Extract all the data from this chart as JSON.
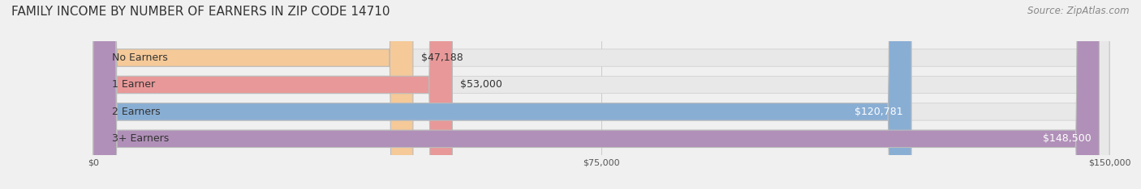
{
  "title": "FAMILY INCOME BY NUMBER OF EARNERS IN ZIP CODE 14710",
  "source": "Source: ZipAtlas.com",
  "categories": [
    "No Earners",
    "1 Earner",
    "2 Earners",
    "3+ Earners"
  ],
  "values": [
    47188,
    53000,
    120781,
    148500
  ],
  "bar_colors": [
    "#f5c998",
    "#e89898",
    "#89aed4",
    "#b090b8"
  ],
  "bar_edge_colors": [
    "#e8b070",
    "#d07070",
    "#6090c0",
    "#9070a0"
  ],
  "label_colors": [
    "#555555",
    "#555555",
    "#ffffff",
    "#ffffff"
  ],
  "x_max": 150000,
  "x_ticks": [
    0,
    75000,
    150000
  ],
  "x_tick_labels": [
    "$0",
    "$75,000",
    "$150,000"
  ],
  "background_color": "#f0f0f0",
  "bar_bg_color": "#e8e8e8",
  "title_fontsize": 11,
  "source_fontsize": 8.5,
  "label_fontsize": 9,
  "category_fontsize": 9
}
